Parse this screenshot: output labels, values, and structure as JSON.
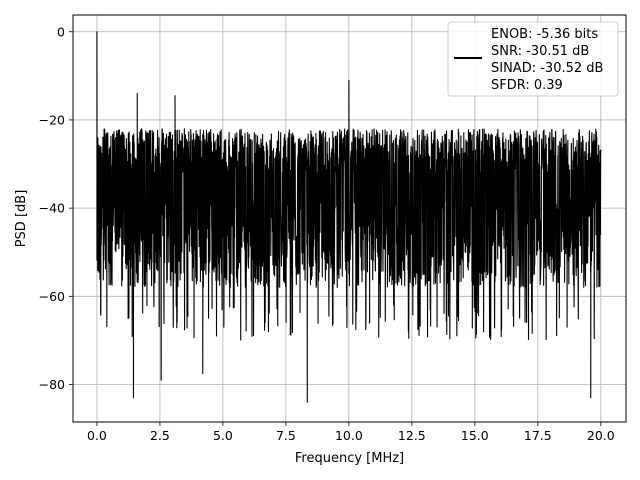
{
  "chart_data": {
    "type": "line",
    "title": "",
    "xlabel": "Frequency [MHz]",
    "ylabel": "PSD [dB]",
    "xlim": [
      -0.95,
      21.0
    ],
    "ylim": [
      -88.5,
      3.8
    ],
    "grid": true,
    "legend_position": "top-right",
    "x_ticks": [
      0.0,
      2.5,
      5.0,
      7.5,
      10.0,
      12.5,
      15.0,
      17.5,
      20.0
    ],
    "x_tick_labels": [
      "0.0",
      "2.5",
      "5.0",
      "7.5",
      "10.0",
      "12.5",
      "15.0",
      "17.5",
      "20.0"
    ],
    "y_ticks": [
      0,
      -20,
      -40,
      -60,
      -80
    ],
    "y_tick_labels": [
      "0",
      "−20",
      "−40",
      "−60",
      "−80"
    ],
    "series": [
      {
        "color": "#000000",
        "x_range": [
          0.0,
          20.0
        ],
        "noise_floor_top_db": -20,
        "noise_floor_bottom_db": -62,
        "peaks": [
          {
            "x": 0.0,
            "y": 0.0
          },
          {
            "x": 1.6,
            "y": -14.0
          },
          {
            "x": 3.1,
            "y": -14.5
          },
          {
            "x": 10.0,
            "y": -11.0
          }
        ],
        "dips": [
          {
            "x": 1.45,
            "y": -83.0
          },
          {
            "x": 8.35,
            "y": -84.0
          },
          {
            "x": 19.6,
            "y": -83.0
          },
          {
            "x": 4.2,
            "y": -77.5
          },
          {
            "x": 2.55,
            "y": -79.0
          }
        ]
      }
    ],
    "legend": [
      "ENOB: -5.36 bits",
      "SNR: -30.51 dB",
      "SINAD: -30.52 dB",
      "SFDR: 0.39"
    ]
  }
}
